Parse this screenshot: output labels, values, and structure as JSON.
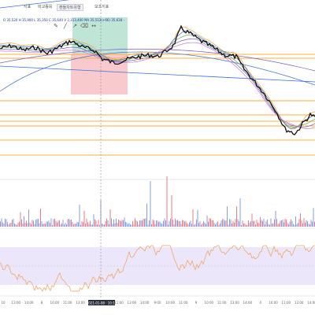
{
  "toolbar": {
    "items": [
      "",
      "지표",
      "비교종목",
      "캔들차트유형",
      "",
      "보조지표"
    ]
  },
  "info_line": "O 35,520 H 35,900 L 35,350 C 35,640 V 2,313,400 MA 35,512(+66) 35,638 -",
  "crosshair_time": "2021-01-08 · 10:13",
  "time_labels": [
    "10",
    "13:00",
    "14:00",
    "8",
    "10:00",
    "11:00",
    "13:00",
    "14:00",
    "12",
    "11:00",
    "13:00",
    "14:00",
    "9:00",
    "10:00",
    "11:00",
    "9",
    "10:00",
    "11:00",
    "13:00",
    "14:00",
    "4",
    "10:00",
    "11:00",
    "12:00",
    "14:00"
  ],
  "colors": {
    "price": "#111111",
    "ma_blue": "#3a6fd8",
    "ma_orange": "#f0a030",
    "ma_green": "#5aaa5a",
    "ma_purple": "#7a5ac8",
    "horizontal": "#f5b040",
    "buy_zone": "#2aa87a",
    "sell_zone": "#e8505a",
    "oscillator": "#f0a050",
    "osc_band": "#ece6fa"
  }
}
